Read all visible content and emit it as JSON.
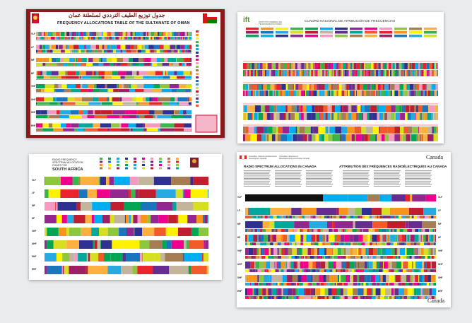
{
  "oman": {
    "title_ar": "جدول توزيع الطيف الترددي لسلطنة عمان",
    "title_en": "FREQUENCY ALLOCATIONS TABLE OF THE SULTANATE OF OMAN",
    "band_labels": [
      "VLF",
      "LF",
      "MF",
      "HF",
      "VHF",
      "UHF",
      "SHF",
      "EHF"
    ]
  },
  "mexico": {
    "logo": "ift",
    "org": "INSTITUTO FEDERAL DE TELECOMUNICACIONES",
    "title": "CUADRO NACIONAL DE ATRIBUCIÓN DE FRECUENCIAS"
  },
  "south_africa": {
    "title": "RADIO FREQUENCY SPECTRUM ALLOCATION CHART FOR",
    "country": "SOUTH AFRICA",
    "band_labels": [
      "VLF",
      "LF",
      "MF",
      "HF",
      "VHF",
      "UHF",
      "SHF",
      "EHF"
    ]
  },
  "canada": {
    "title_en": "RADIO SPECTRUM ALLOCATIONS IN CANADA",
    "title_fr": "ATTRIBUTION DES FRÉQUENCES RADIOÉLECTRIQUES AU CANADA",
    "wordmark": "Canada",
    "dept_en": "Innovation, Science and Economic Development Canada",
    "dept_fr": "Innovation, Sciences et Développement économique Canada",
    "band_labels": [
      "VLF",
      "LF",
      "MF",
      "HF",
      "VHF",
      "UHF",
      "SHF",
      "EHF"
    ]
  },
  "colors": {
    "palette": [
      "#e8232b",
      "#f7941d",
      "#fff200",
      "#39b54a",
      "#00a651",
      "#00aeef",
      "#2e3192",
      "#92278f",
      "#ec008c",
      "#f49ac1",
      "#8dc63f",
      "#a67c52",
      "#fbb040",
      "#9e1f63",
      "#1b75bc",
      "#27aae1",
      "#d7df23",
      "#be1e2d",
      "#c2b59b",
      "#662d91",
      "#00a79d",
      "#f15a29"
    ]
  }
}
